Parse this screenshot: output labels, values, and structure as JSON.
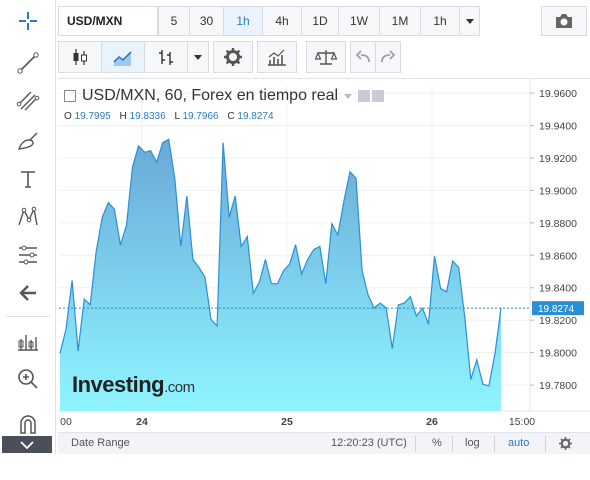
{
  "toolbar": {
    "symbol": "USD/MXN",
    "intervals": [
      "5",
      "30",
      "1h",
      "4h",
      "1D",
      "1W",
      "1M",
      "1h"
    ],
    "active_interval": "1h"
  },
  "chart": {
    "legend_title": "USD/MXN, 60, Forex en tiempo real",
    "ohlc": {
      "o_label": "O",
      "o_value": "19.7995",
      "h_label": "H",
      "h_value": "19.8336",
      "l_label": "L",
      "l_value": "19.7966",
      "c_label": "C",
      "c_value": "19.8274"
    },
    "watermark": "Investing",
    "watermark_suffix": ".com",
    "last_price_label": "19.8274"
  },
  "bottom_bar": {
    "date_range": "Date Range",
    "time": "12:20:23 (UTC)",
    "percent": "%",
    "log": "log",
    "auto": "auto"
  },
  "colors": {
    "line": "#2b8fd6",
    "accent": "#2b7bc4",
    "last_price_bg": "#2b8fd6"
  },
  "chart_data": {
    "type": "area",
    "y_ticks": [
      "19.9600",
      "19.9400",
      "19.9200",
      "19.9000",
      "19.8800",
      "19.8600",
      "19.8400",
      "19.8200",
      "19.8000",
      "19.7800"
    ],
    "x_ticks": [
      "00",
      "24",
      "25",
      "26",
      "15:00"
    ],
    "ylim": [
      19.764,
      19.965
    ],
    "last_price": 19.8274,
    "values": [
      19.7995,
      19.8145,
      19.8445,
      19.801,
      19.833,
      19.8295,
      19.8625,
      19.8835,
      19.8925,
      19.8885,
      19.8665,
      19.8785,
      19.9145,
      19.9275,
      19.9235,
      19.9245,
      19.9175,
      19.9295,
      19.9315,
      19.9075,
      19.8655,
      19.8965,
      19.8575,
      19.8525,
      19.8465,
      19.8205,
      19.8165,
      19.9295,
      19.8835,
      19.8965,
      19.8655,
      19.8715,
      19.8365,
      19.8435,
      19.8575,
      19.8425,
      19.8425,
      19.8505,
      19.8545,
      19.8665,
      19.8485,
      19.8575,
      19.8635,
      19.8655,
      19.8425,
      19.8795,
      19.8725,
      19.8935,
      19.9115,
      19.9075,
      19.8505,
      19.8355,
      19.8275,
      19.8305,
      19.8275,
      19.8025,
      19.8295,
      19.8305,
      19.8345,
      19.8225,
      19.8275,
      19.8175,
      19.8595,
      19.8395,
      19.8375,
      19.8565,
      19.8525,
      19.8215,
      19.7835,
      19.7955,
      19.7805,
      19.7795,
      19.7995,
      19.8274
    ]
  }
}
